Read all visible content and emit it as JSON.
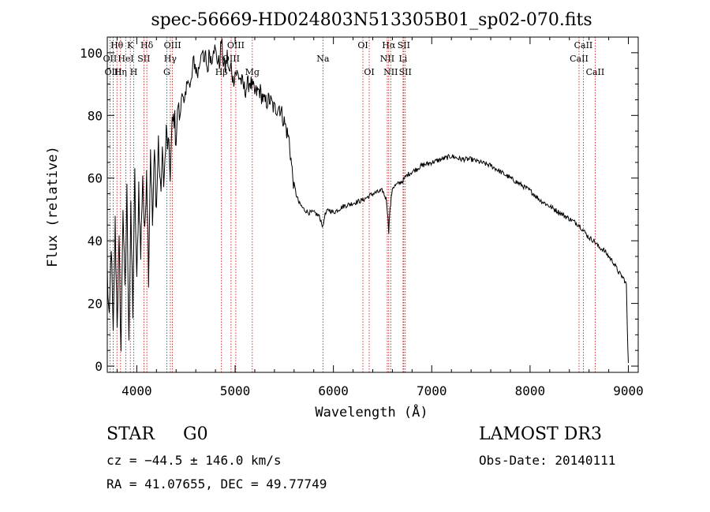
{
  "chart_data": {
    "type": "line",
    "title": "spec-56669-HD024803N513305B01_sp02-070.fits",
    "xlabel": "Wavelength (Å)",
    "ylabel": "Flux (relative)",
    "xlim": [
      3700,
      9100
    ],
    "ylim": [
      -2,
      105
    ],
    "xticks": [
      4000,
      5000,
      6000,
      7000,
      8000,
      9000
    ],
    "yticks": [
      0,
      20,
      40,
      60,
      80,
      100
    ],
    "series": [
      {
        "name": "flux",
        "x": [
          3700,
          3720,
          3740,
          3760,
          3780,
          3800,
          3820,
          3840,
          3860,
          3880,
          3900,
          3920,
          3940,
          3960,
          3980,
          4000,
          4020,
          4040,
          4060,
          4080,
          4100,
          4120,
          4140,
          4160,
          4180,
          4200,
          4220,
          4240,
          4260,
          4280,
          4300,
          4320,
          4340,
          4360,
          4380,
          4400,
          4420,
          4440,
          4460,
          4480,
          4500,
          4520,
          4540,
          4560,
          4580,
          4600,
          4620,
          4640,
          4660,
          4680,
          4700,
          4720,
          4740,
          4760,
          4780,
          4800,
          4820,
          4840,
          4860,
          4880,
          4900,
          4920,
          4940,
          4960,
          4980,
          5000,
          5050,
          5100,
          5150,
          5200,
          5250,
          5300,
          5350,
          5400,
          5450,
          5500,
          5550,
          5580,
          5600,
          5620,
          5650,
          5700,
          5750,
          5800,
          5850,
          5880,
          5893,
          5910,
          5950,
          6000,
          6100,
          6200,
          6300,
          6400,
          6500,
          6540,
          6555,
          6563,
          6570,
          6600,
          6650,
          6700,
          6750,
          6800,
          6900,
          7000,
          7100,
          7200,
          7300,
          7400,
          7500,
          7600,
          7700,
          7800,
          7900,
          8000,
          8100,
          8200,
          8300,
          8400,
          8500,
          8550,
          8600,
          8650,
          8700,
          8750,
          8800,
          8850,
          8900,
          8950,
          8980,
          8990,
          9000
        ],
        "values": [
          30,
          12,
          40,
          8,
          45,
          15,
          38,
          5,
          52,
          22,
          55,
          10,
          48,
          18,
          60,
          25,
          58,
          35,
          62,
          40,
          65,
          30,
          70,
          45,
          68,
          50,
          72,
          55,
          66,
          60,
          74,
          70,
          62,
          76,
          80,
          72,
          84,
          78,
          90,
          82,
          86,
          94,
          88,
          92,
          98,
          95,
          93,
          97,
          102,
          96,
          99,
          94,
          101,
          97,
          103,
          100,
          98,
          96,
          104,
          97,
          95,
          99,
          93,
          96,
          91,
          94,
          92,
          88,
          91,
          87,
          88,
          84,
          85,
          82,
          83,
          78,
          72,
          62,
          58,
          55,
          52,
          50,
          49,
          49,
          48,
          46,
          44,
          48,
          50,
          49,
          51,
          52,
          53,
          55,
          56,
          53,
          47,
          43,
          48,
          57,
          58,
          59,
          61,
          62,
          64,
          65,
          66,
          67,
          66,
          66,
          65,
          64,
          62,
          60,
          58,
          56,
          53,
          51,
          49,
          47,
          45,
          43,
          41,
          40,
          38,
          37,
          35,
          33,
          30,
          28,
          26,
          10,
          1
        ]
      }
    ],
    "lines": [
      {
        "label": "Hθ",
        "wave": 3798,
        "row": 1
      },
      {
        "label": "OII",
        "wave": 3727,
        "row": 2
      },
      {
        "label": "OIII",
        "wave": 3760,
        "row": 3
      },
      {
        "label": "K",
        "wave": 3934,
        "row": 1
      },
      {
        "label": "HeI",
        "wave": 3889,
        "row": 2
      },
      {
        "label": "Hη",
        "wave": 3835,
        "row": 3
      },
      {
        "label": "Hδ",
        "wave": 4102,
        "row": 1
      },
      {
        "label": "SII",
        "wave": 4072,
        "row": 2
      },
      {
        "label": "H",
        "wave": 3969,
        "row": 3
      },
      {
        "label": "OIII",
        "wave": 4363,
        "row": 1
      },
      {
        "label": "Hγ",
        "wave": 4341,
        "row": 2
      },
      {
        "label": "G",
        "wave": 4305,
        "row": 3
      },
      {
        "label": "OIII",
        "wave": 5007,
        "row": 1
      },
      {
        "label": "OIII",
        "wave": 4959,
        "row": 2
      },
      {
        "label": "Hβ",
        "wave": 4861,
        "row": 3
      },
      {
        "label": "Mg",
        "wave": 5175,
        "row": 3
      },
      {
        "label": "Na",
        "wave": 5893,
        "row": 2
      },
      {
        "label": "OI",
        "wave": 6300,
        "row": 1
      },
      {
        "label": "OI",
        "wave": 6364,
        "row": 3
      },
      {
        "label": "Hα",
        "wave": 6563,
        "row": 1
      },
      {
        "label": "SII",
        "wave": 6716,
        "row": 1
      },
      {
        "label": "NII",
        "wave": 6548,
        "row": 2
      },
      {
        "label": "Li",
        "wave": 6708,
        "row": 2
      },
      {
        "label": "NII",
        "wave": 6583,
        "row": 3
      },
      {
        "label": "SII",
        "wave": 6731,
        "row": 3
      },
      {
        "label": "CaII",
        "wave": 8542,
        "row": 1
      },
      {
        "label": "CaII",
        "wave": 8498,
        "row": 2
      },
      {
        "label": "CaII",
        "wave": 8662,
        "row": 3
      }
    ]
  },
  "info": {
    "object_class": "STAR",
    "subclass": "G0",
    "survey": "LAMOST DR3",
    "redshift_text": "cz = −44.5 ± 146.0 km/s",
    "obs_date": "Obs-Date: 20140111",
    "coords": "RA =  41.07655, DEC =  49.77749"
  },
  "colors": {
    "spectrum": "#000000",
    "line_markers": "#cc0000",
    "axes": "#000000",
    "background": "#ffffff"
  }
}
